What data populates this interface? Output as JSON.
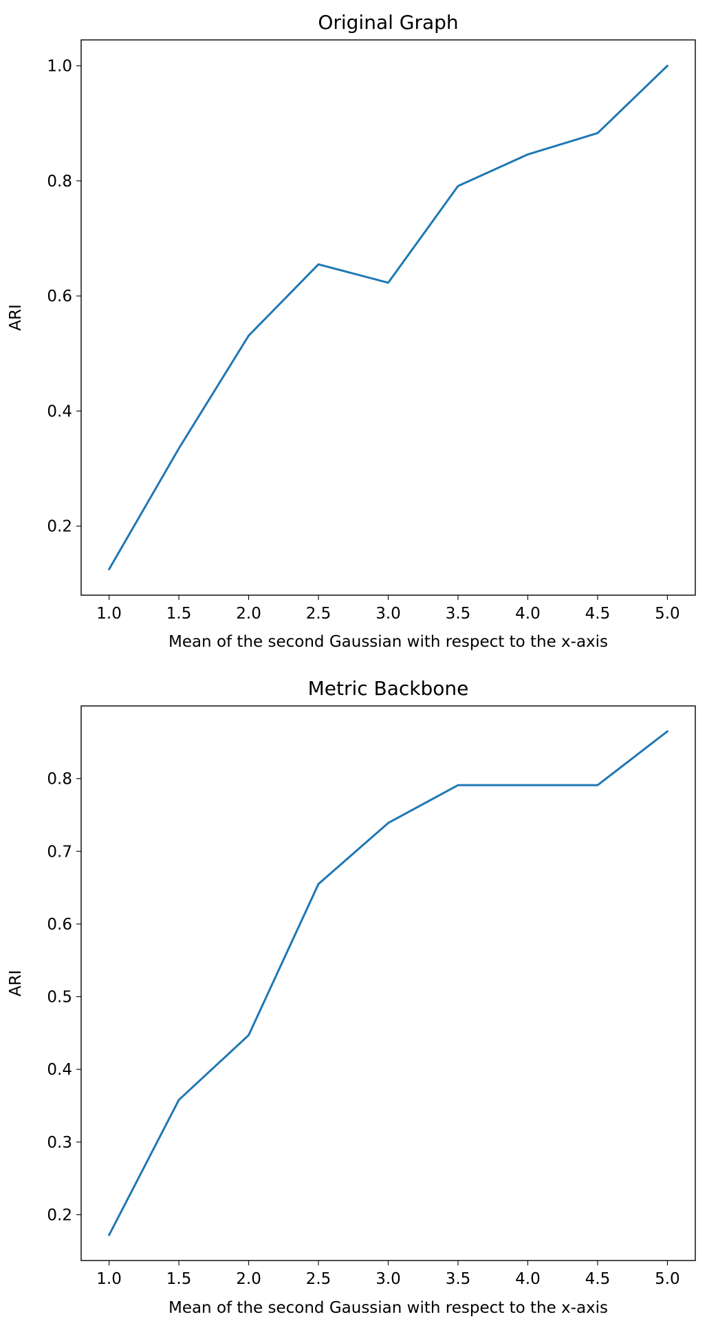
{
  "chart_data": [
    {
      "type": "line",
      "title": "Original Graph",
      "xlabel": "Mean of the second Gaussian with respect to the x-axis",
      "ylabel": "ARI",
      "x": [
        1.0,
        1.5,
        2.0,
        2.5,
        3.0,
        3.5,
        4.0,
        4.5,
        5.0
      ],
      "series": [
        {
          "values": [
            0.125,
            0.335,
            0.531,
            0.655,
            0.623,
            0.791,
            0.846,
            0.883,
            1.0
          ],
          "color": "#1f77b4"
        }
      ],
      "xlim": [
        0.8,
        5.2
      ],
      "ylim": [
        0.08,
        1.045
      ],
      "xticks": [
        "1.0",
        "1.5",
        "2.0",
        "2.5",
        "3.0",
        "3.5",
        "4.0",
        "4.5",
        "5.0"
      ],
      "yticks": [
        "0.2",
        "0.4",
        "0.6",
        "0.8",
        "1.0"
      ],
      "grid": false
    },
    {
      "type": "line",
      "title": "Metric Backbone",
      "xlabel": "Mean of the second Gaussian with respect to the x-axis",
      "ylabel": "ARI",
      "x": [
        1.0,
        1.5,
        2.0,
        2.5,
        3.0,
        3.5,
        4.0,
        4.5,
        5.0
      ],
      "series": [
        {
          "values": [
            0.172,
            0.358,
            0.447,
            0.655,
            0.739,
            0.791,
            0.791,
            0.791,
            0.865
          ],
          "color": "#1f77b4"
        }
      ],
      "xlim": [
        0.8,
        5.2
      ],
      "ylim": [
        0.137,
        0.9
      ],
      "xticks": [
        "1.0",
        "1.5",
        "2.0",
        "2.5",
        "3.0",
        "3.5",
        "4.0",
        "4.5",
        "5.0"
      ],
      "yticks": [
        "0.2",
        "0.3",
        "0.4",
        "0.5",
        "0.6",
        "0.7",
        "0.8"
      ],
      "grid": false
    }
  ]
}
